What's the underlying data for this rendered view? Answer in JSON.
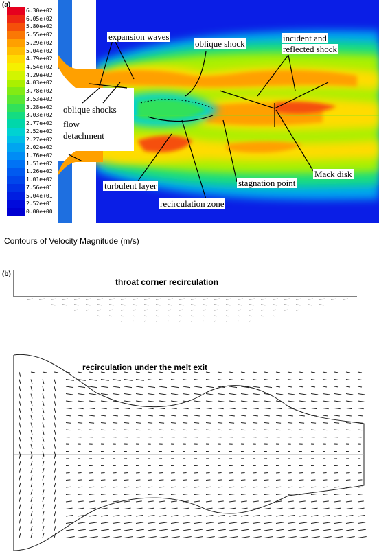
{
  "panel_a": {
    "label": "(a)",
    "legend": {
      "values": [
        "6.30e+02",
        "6.05e+02",
        "5.80e+02",
        "5.55e+02",
        "5.29e+02",
        "5.04e+02",
        "4.79e+02",
        "4.54e+02",
        "4.29e+02",
        "4.03e+02",
        "3.78e+02",
        "3.53e+02",
        "3.28e+02",
        "3.03e+02",
        "2.77e+02",
        "2.52e+02",
        "2.27e+02",
        "2.02e+02",
        "1.76e+02",
        "1.51e+02",
        "1.26e+02",
        "1.01e+02",
        "7.56e+01",
        "5.04e+01",
        "2.52e+01",
        "0.00e+00"
      ],
      "colors": [
        "#e6001e",
        "#ee2812",
        "#f5500a",
        "#fa7805",
        "#ffa000",
        "#ffbe00",
        "#ffdc00",
        "#f5f000",
        "#d2f500",
        "#aaf000",
        "#82eb14",
        "#5ae632",
        "#32e15a",
        "#14dc82",
        "#00d7aa",
        "#00d2d2",
        "#00bee6",
        "#00a5f0",
        "#008cf5",
        "#0073f5",
        "#005af0",
        "#0046eb",
        "#0032e6",
        "#001ee1",
        "#000adc",
        "#0000d2"
      ]
    },
    "annotations": {
      "expansion_waves": "expansion waves",
      "oblique_shock": "oblique shock",
      "incident_reflected_line1": "incident and",
      "incident_reflected_line2": "reflected shock",
      "oblique_shocks": "oblique shocks",
      "flow_detachment_line1": "flow",
      "flow_detachment_line2": "detachment",
      "mack_disk": "Mack disk",
      "stagnation_point": "stagnation point",
      "turbulent_layer": "turbulent layer",
      "recirculation_zone": "recirculation zone"
    },
    "colors": {
      "background_field": "#0a1ee6",
      "nozzle_wall": "#1e6fe0",
      "jet_core": "#ff9a00"
    }
  },
  "caption": "Contours of Velocity Magnitude (m/s)",
  "panel_b": {
    "label": "(b)",
    "throat_title": "throat  corner recirculation",
    "melt_title": "recirculation under the melt exit"
  }
}
